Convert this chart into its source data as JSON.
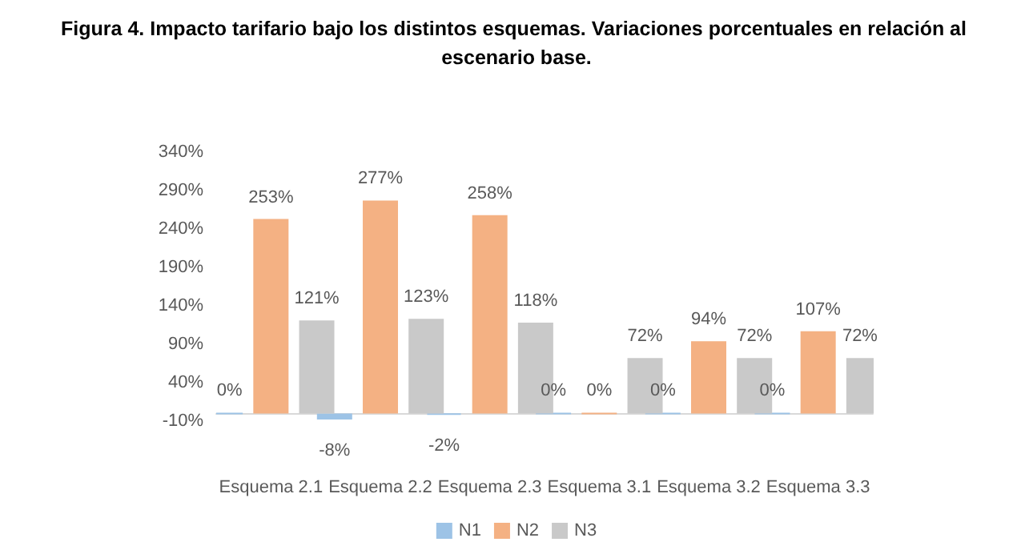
{
  "chart_data": {
    "type": "bar",
    "title": "Figura 4. Impacto tarifario bajo los distintos esquemas. Variaciones porcentuales en relación al escenario base.",
    "categories": [
      "Esquema 2.1",
      "Esquema 2.2",
      "Esquema 2.3",
      "Esquema 3.1",
      "Esquema 3.2",
      "Esquema 3.3"
    ],
    "series": [
      {
        "name": "N1",
        "color": "#9dc3e6",
        "values": [
          0,
          -8,
          -2,
          0,
          0,
          0
        ],
        "value_labels": [
          "0%",
          "-8%",
          "-2%",
          "0%",
          "0%",
          "0%"
        ]
      },
      {
        "name": "N2",
        "color": "#f4b183",
        "values": [
          253,
          277,
          258,
          0,
          94,
          107
        ],
        "value_labels": [
          "253%",
          "277%",
          "258%",
          "0%",
          "94%",
          "107%"
        ]
      },
      {
        "name": "N3",
        "color": "#c9c9c9",
        "values": [
          121,
          123,
          118,
          72,
          72,
          72
        ],
        "value_labels": [
          "121%",
          "123%",
          "118%",
          "72%",
          "72%",
          "72%"
        ]
      }
    ],
    "ylim": [
      -10,
      340
    ],
    "yticks": [
      {
        "value": -10,
        "label": "-10%"
      },
      {
        "value": 40,
        "label": "40%"
      },
      {
        "value": 90,
        "label": "90%"
      },
      {
        "value": 140,
        "label": "140%"
      },
      {
        "value": 190,
        "label": "190%"
      },
      {
        "value": 240,
        "label": "240%"
      },
      {
        "value": 290,
        "label": "290%"
      },
      {
        "value": 340,
        "label": "340%"
      }
    ],
    "grid": false,
    "legend": "bottom"
  }
}
